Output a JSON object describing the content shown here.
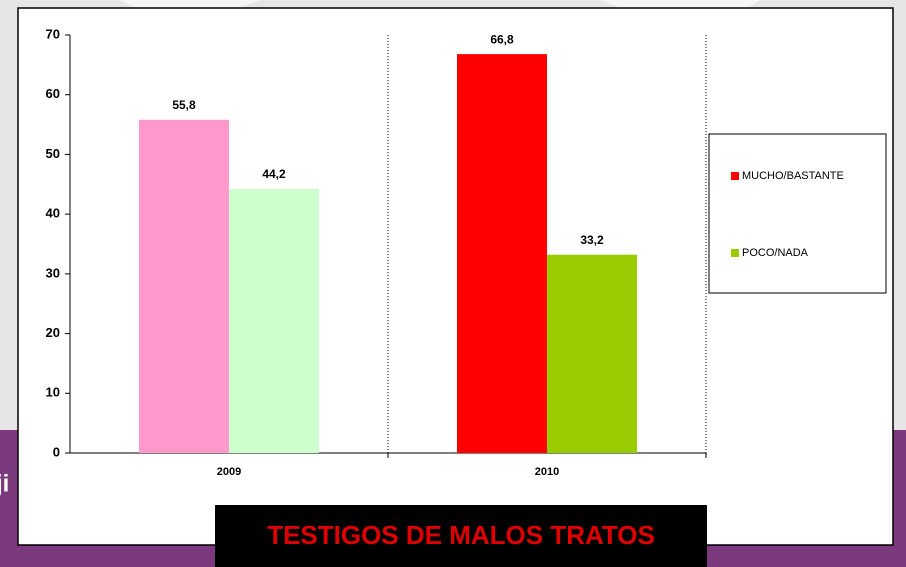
{
  "background_text": "ji",
  "chart_data": {
    "type": "bar",
    "title": "TESTIGOS DE MALOS TRATOS",
    "categories": [
      "2009",
      "2010"
    ],
    "series": [
      {
        "name": "MUCHO/BASTANTE",
        "color": "#ff0000",
        "colors": [
          "#ff99cc",
          "#ff0000"
        ],
        "values": [
          55.8,
          66.8
        ],
        "value_labels": [
          "55,8",
          "66,8"
        ]
      },
      {
        "name": "POCO/NADA",
        "color": "#99cc00",
        "colors": [
          "#ccffcc",
          "#99cc00"
        ],
        "values": [
          44.2,
          33.2
        ],
        "value_labels": [
          "44,2",
          "33,2"
        ]
      }
    ],
    "ylim": [
      0,
      70
    ],
    "yticks": [
      0,
      10,
      20,
      30,
      40,
      50,
      60,
      70
    ],
    "legend": "right"
  }
}
